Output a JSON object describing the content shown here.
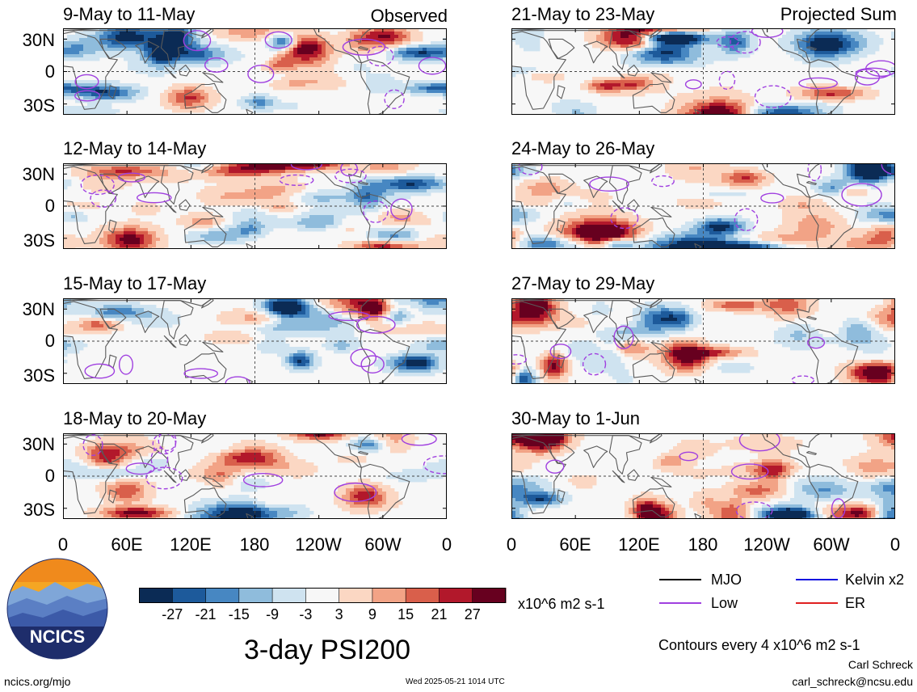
{
  "chart_data": {
    "type": "heatmap",
    "title": "3-day PSI200",
    "units": "x10^6 m2 s-1",
    "x_tick_labels": [
      "0",
      "60E",
      "120E",
      "180",
      "120W",
      "60W",
      "0"
    ],
    "y_tick_labels": [
      "30N",
      "0",
      "30S"
    ],
    "colorbar": {
      "tick_labels": [
        "-27",
        "-21",
        "-15",
        "-9",
        "-3",
        "3",
        "9",
        "15",
        "21",
        "27"
      ],
      "colors": [
        "#0b2b55",
        "#1d5a9b",
        "#4787c2",
        "#8fbcdc",
        "#cfe3f0",
        "#f7f7f7",
        "#fbd7c3",
        "#f2a386",
        "#d95f4b",
        "#b2182b",
        "#67001f"
      ]
    },
    "panels": [
      {
        "id": "p1",
        "title": "9-May to 11-May",
        "tag": "Observed",
        "col": 0,
        "row": 0,
        "seed": 11
      },
      {
        "id": "p2",
        "title": "12-May to 14-May",
        "tag": "",
        "col": 0,
        "row": 1,
        "seed": 23
      },
      {
        "id": "p3",
        "title": "15-May to 17-May",
        "tag": "",
        "col": 0,
        "row": 2,
        "seed": 37
      },
      {
        "id": "p4",
        "title": "18-May to 20-May",
        "tag": "",
        "col": 0,
        "row": 3,
        "seed": 41
      },
      {
        "id": "p5",
        "title": "21-May to 23-May",
        "tag": "Projected Sum",
        "col": 1,
        "row": 0,
        "seed": 53
      },
      {
        "id": "p6",
        "title": "24-May to 26-May",
        "tag": "",
        "col": 1,
        "row": 1,
        "seed": 67
      },
      {
        "id": "p7",
        "title": "27-May to 29-May",
        "tag": "",
        "col": 1,
        "row": 2,
        "seed": 71
      },
      {
        "id": "p8",
        "title": "30-May to 1-Jun",
        "tag": "",
        "col": 1,
        "row": 3,
        "seed": 89
      }
    ],
    "contour_legend": [
      {
        "label": "MJO",
        "color": "#000000"
      },
      {
        "label": "Kelvin x2",
        "color": "#1010e0"
      },
      {
        "label": "Low",
        "color": "#a040e0"
      },
      {
        "label": "ER",
        "color": "#e02020"
      }
    ],
    "contour_note": "Contours every 4 x10^6 m2 s-1"
  },
  "footer": {
    "logo_text": "NCICS",
    "site": "ncics.org/mjo",
    "timestamp": "Wed 2025-05-21 1014 UTC",
    "author": "Carl Schreck",
    "email": "carl_schreck@ncsu.edu"
  }
}
